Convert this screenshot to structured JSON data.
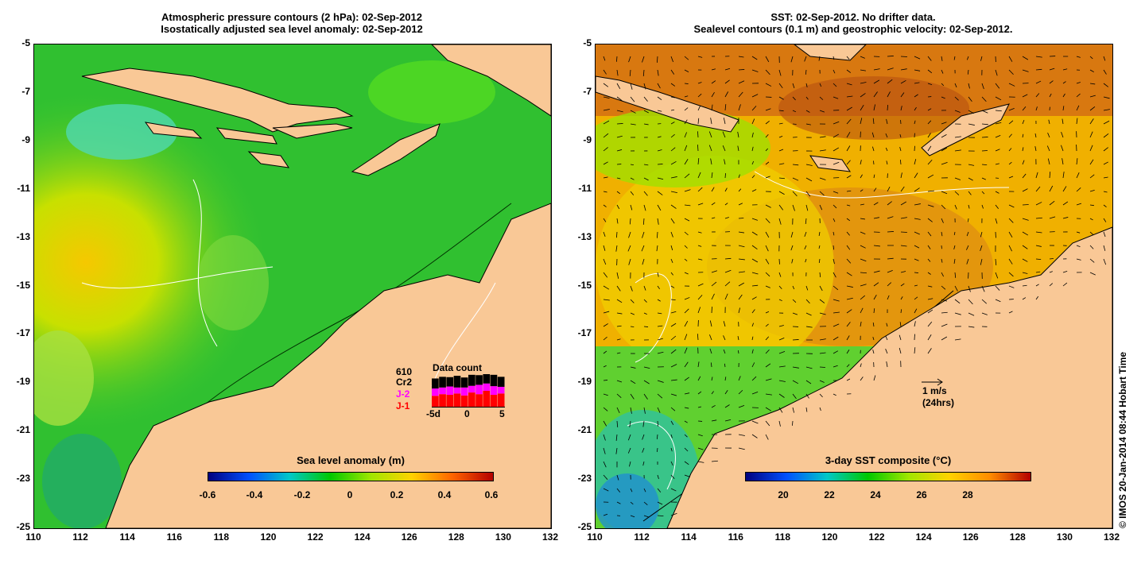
{
  "left": {
    "title_line1": "Atmospheric pressure contours (2 hPa): 02-Sep-2012",
    "title_line2": "Isostatically adjusted sea level anomaly: 02-Sep-2012",
    "colorbar_title": "Sea level anomaly (m)",
    "colorbar_ticks": [
      "-0.6",
      "-0.4",
      "-0.2",
      "0",
      "0.2",
      "0.4",
      "0.6"
    ],
    "colorbar_colors": [
      "#00007f",
      "#0050ff",
      "#00c8c8",
      "#00c800",
      "#a0e600",
      "#ffd200",
      "#ff6400",
      "#b40000"
    ],
    "data_count": {
      "title": "Data count",
      "top_number": "610",
      "labels": [
        "Cr2",
        "J-2",
        "J-1"
      ],
      "label_colors": [
        "#000000",
        "#ff00ff",
        "#ff0000"
      ],
      "axis_ticks": [
        "-5d",
        "0",
        "5"
      ],
      "bars_j1": [
        0.35,
        0.4,
        0.38,
        0.42,
        0.36,
        0.45,
        0.4,
        0.5,
        0.38,
        0.42
      ],
      "bars_j2": [
        0.22,
        0.2,
        0.25,
        0.18,
        0.24,
        0.2,
        0.28,
        0.22,
        0.26,
        0.2
      ],
      "bars_cr2": [
        0.3,
        0.32,
        0.28,
        0.35,
        0.3,
        0.33,
        0.29,
        0.31,
        0.34,
        0.3
      ]
    }
  },
  "right": {
    "title_line1": "SST: 02-Sep-2012. No drifter data.",
    "title_line2": "Sealevel contours (0.1 m) and geostrophic velocity: 02-Sep-2012.",
    "colorbar_title": "3-day SST composite (°C)",
    "colorbar_ticks": [
      "20",
      "22",
      "24",
      "26",
      "28"
    ],
    "colorbar_colors": [
      "#00007f",
      "#0050ff",
      "#00c8c8",
      "#00c800",
      "#a0e600",
      "#ffd200",
      "#ff8c00",
      "#b40000"
    ],
    "scale_arrow_label1": "1 m/s",
    "scale_arrow_label2": "(24hrs)"
  },
  "axes": {
    "x_ticks": [
      "110",
      "112",
      "114",
      "116",
      "118",
      "120",
      "122",
      "124",
      "126",
      "128",
      "130",
      "132"
    ],
    "y_ticks": [
      "-5",
      "-7",
      "-9",
      "-11",
      "-13",
      "-15",
      "-17",
      "-19",
      "-21",
      "-23",
      "-25"
    ]
  },
  "credit": "© IMOS 20-Jan-2014 08:44 Hobart Time",
  "colors": {
    "land": "#f9c896",
    "coast": "#000000",
    "contour": "#ffffff"
  }
}
